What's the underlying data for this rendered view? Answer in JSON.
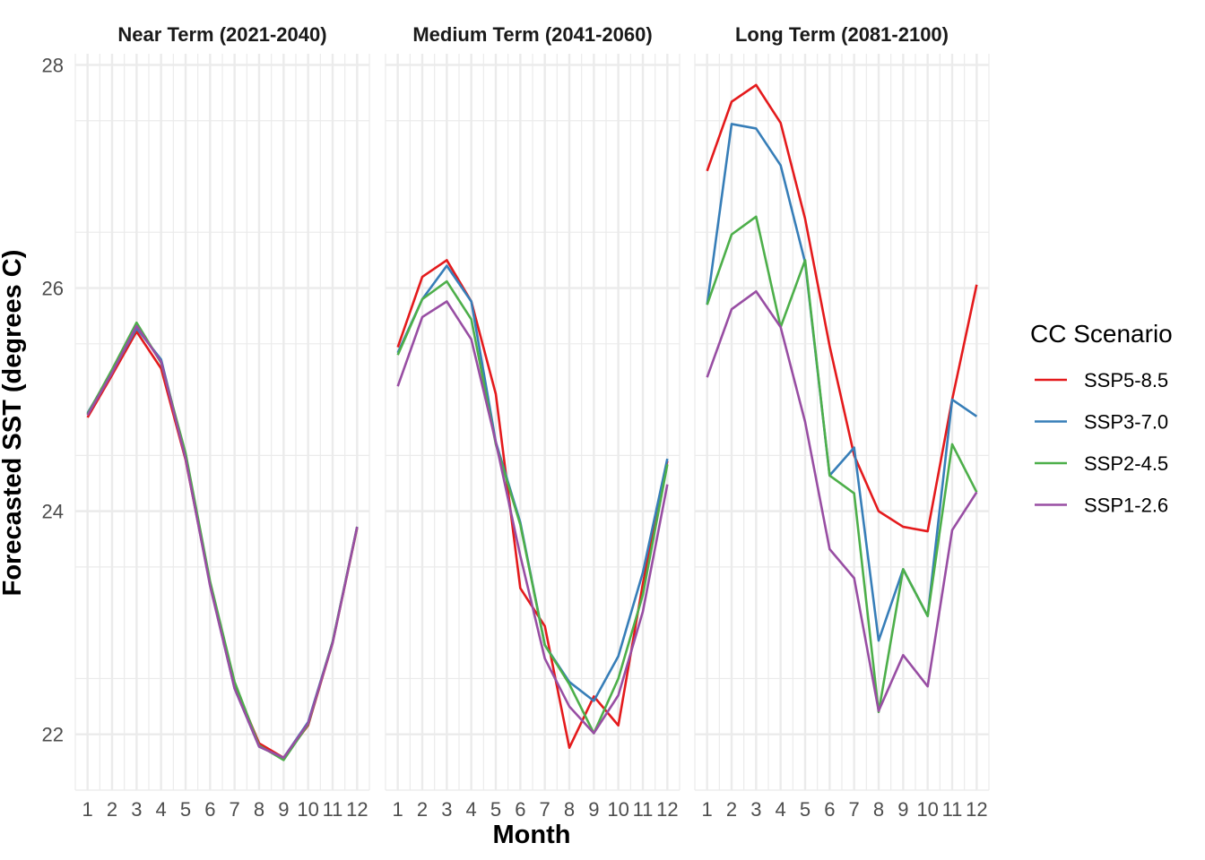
{
  "chart_data": {
    "type": "line",
    "xlabel": "Month",
    "ylabel": "Forecasted SST (degrees C)",
    "ylim": [
      21.5,
      28.1
    ],
    "y_ticks": [
      22,
      24,
      26,
      28
    ],
    "x": [
      1,
      2,
      3,
      4,
      5,
      6,
      7,
      8,
      9,
      10,
      11,
      12
    ],
    "grid": true,
    "legend": {
      "title": "CC Scenario",
      "position": "right",
      "entries": [
        "SSP5-8.5",
        "SSP3-7.0",
        "SSP2-4.5",
        "SSP1-2.6"
      ]
    },
    "colors": {
      "SSP5-8.5": "#E41A1C",
      "SSP3-7.0": "#377EB8",
      "SSP2-4.5": "#4DAF4A",
      "SSP1-2.6": "#984EA3"
    },
    "panels": [
      {
        "title": "Near Term (2021-2040)",
        "series": [
          {
            "name": "SSP5-8.5",
            "values": [
              24.84,
              25.22,
              25.61,
              25.28,
              24.46,
              23.35,
              22.44,
              21.92,
              21.79,
              22.08,
              22.82,
              23.85
            ]
          },
          {
            "name": "SSP3-7.0",
            "values": [
              24.88,
              25.25,
              25.64,
              25.36,
              24.48,
              23.34,
              22.41,
              21.89,
              21.79,
              22.11,
              22.83,
              23.86
            ]
          },
          {
            "name": "SSP2-4.5",
            "values": [
              24.87,
              25.27,
              25.69,
              25.33,
              24.52,
              23.37,
              22.47,
              21.9,
              21.77,
              22.09,
              22.83,
              23.86
            ]
          },
          {
            "name": "SSP1-2.6",
            "values": [
              24.86,
              25.24,
              25.66,
              25.34,
              24.47,
              23.33,
              22.41,
              21.89,
              21.79,
              22.1,
              22.82,
              23.86
            ]
          }
        ]
      },
      {
        "title": "Medium Term (2041-2060)",
        "series": [
          {
            "name": "SSP5-8.5",
            "values": [
              25.47,
              26.1,
              26.25,
              25.88,
              25.05,
              23.31,
              22.97,
              21.88,
              22.34,
              22.08,
              23.35,
              24.45
            ]
          },
          {
            "name": "SSP3-7.0",
            "values": [
              25.42,
              25.9,
              26.2,
              25.88,
              24.62,
              23.9,
              22.8,
              22.47,
              22.3,
              22.7,
              23.45,
              24.47
            ]
          },
          {
            "name": "SSP2-4.5",
            "values": [
              25.4,
              25.9,
              26.06,
              25.72,
              24.6,
              23.88,
              22.8,
              22.45,
              22.01,
              22.5,
              23.25,
              24.42
            ]
          },
          {
            "name": "SSP1-2.6",
            "values": [
              25.12,
              25.74,
              25.88,
              25.54,
              24.62,
              23.6,
              22.68,
              22.25,
              22.01,
              22.35,
              23.1,
              24.24
            ]
          }
        ]
      },
      {
        "title": "Long Term (2081-2100)",
        "series": [
          {
            "name": "SSP5-8.5",
            "values": [
              27.05,
              27.67,
              27.82,
              27.48,
              26.62,
              25.48,
              24.5,
              24.0,
              23.86,
              23.82,
              25.0,
              26.03
            ]
          },
          {
            "name": "SSP3-7.0",
            "values": [
              25.85,
              27.47,
              27.43,
              27.1,
              26.23,
              24.32,
              24.57,
              22.84,
              23.48,
              23.06,
              25.0,
              24.85
            ]
          },
          {
            "name": "SSP2-4.5",
            "values": [
              25.85,
              26.48,
              26.64,
              25.65,
              26.25,
              24.32,
              24.16,
              22.2,
              23.48,
              23.06,
              24.6,
              24.17
            ]
          },
          {
            "name": "SSP1-2.6",
            "values": [
              25.2,
              25.81,
              25.97,
              25.65,
              24.8,
              23.66,
              23.4,
              22.21,
              22.71,
              22.43,
              23.83,
              24.17
            ]
          }
        ]
      }
    ]
  }
}
